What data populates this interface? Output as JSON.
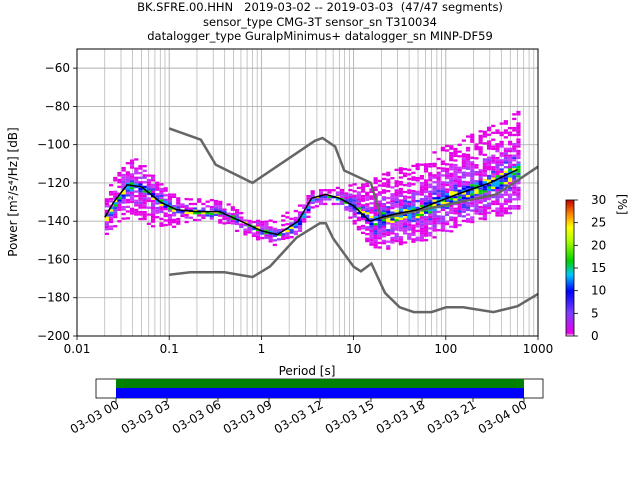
{
  "title_lines": [
    "BK.SFRE.00.HHN   2019-03-02 -- 2019-03-03  (47/47 segments)",
    "sensor_type CMG-3T sensor_sn T310034",
    "datalogger_type GuralpMinimus+ datalogger_sn MINP-DF59"
  ],
  "chart_data": {
    "type": "heatmap",
    "xlabel": "Period [s]",
    "ylabel": "Power [m²/s⁴/Hz] [dB]",
    "xscale": "log",
    "xlim": [
      0.01,
      1000
    ],
    "ylim": [
      -200,
      -50
    ],
    "x_ticks": [
      {
        "value": 0.01,
        "label": "0.01"
      },
      {
        "value": 0.1,
        "label": "0.1"
      },
      {
        "value": 1,
        "label": "1"
      },
      {
        "value": 10,
        "label": "10"
      },
      {
        "value": 100,
        "label": "100"
      },
      {
        "value": 1000,
        "label": "1000"
      }
    ],
    "y_ticks": [
      -60,
      -80,
      -100,
      -120,
      -140,
      -160,
      -180,
      -200
    ],
    "grid": true,
    "colorbar": {
      "label": "[%]",
      "ticks": [
        0,
        5,
        10,
        15,
        20,
        25,
        30
      ],
      "range": [
        0,
        30
      ]
    },
    "series": [
      {
        "name": "NHNM",
        "color": "#666666",
        "x": [
          0.1,
          0.22,
          0.32,
          0.8,
          3.8,
          4.6,
          6.3,
          7.9,
          15.4,
          20,
          354.8,
          1000
        ],
        "y": [
          -91.5,
          -97.4,
          -110.5,
          -120,
          -98,
          -96.5,
          -101,
          -113.5,
          -120,
          -138.5,
          -126,
          -111.5
        ]
      },
      {
        "name": "NLNM",
        "color": "#666666",
        "x": [
          0.1,
          0.17,
          0.4,
          0.8,
          1.24,
          2.4,
          4.3,
          5,
          6,
          10,
          12,
          15.6,
          21.9,
          31.6,
          45,
          70,
          101,
          154,
          328,
          600,
          1000
        ],
        "y": [
          -168,
          -166.7,
          -166.7,
          -169.2,
          -163.7,
          -148.6,
          -141.1,
          -141.1,
          -149,
          -163.8,
          -166.2,
          -162.1,
          -177.5,
          -185,
          -187.5,
          -187.5,
          -185,
          -185,
          -187.5,
          -184.4,
          -178
        ]
      },
      {
        "name": "mean",
        "color": "#000000",
        "x": [
          0.02,
          0.025,
          0.035,
          0.05,
          0.08,
          0.12,
          0.2,
          0.35,
          0.6,
          1,
          1.5,
          2.5,
          3.5,
          5,
          7,
          10,
          15,
          20,
          30,
          50,
          80,
          150,
          300,
          600
        ],
        "y": [
          -138,
          -130,
          -121,
          -122,
          -130,
          -134,
          -135,
          -135,
          -140,
          -145,
          -147,
          -140,
          -128,
          -126,
          -128,
          -132,
          -140,
          -138,
          -136,
          -134,
          -130,
          -125,
          -120,
          -113
        ]
      }
    ],
    "density_bands": [
      {
        "x": [
          0.02,
          0.03,
          0.04,
          0.05,
          0.07,
          0.1,
          0.15,
          0.25,
          0.4,
          0.7,
          1,
          1.5,
          2.5,
          3.5,
          5,
          7,
          10,
          15,
          20,
          30,
          50,
          80,
          150,
          300,
          600
        ],
        "low": [
          -146,
          -140,
          -135,
          -140,
          -143,
          -143,
          -140,
          -138,
          -142,
          -148,
          -153,
          -152,
          -145,
          -133,
          -130,
          -132,
          -142,
          -153,
          -155,
          -152,
          -150,
          -148,
          -142,
          -138,
          -134
        ],
        "high": [
          -122,
          -112,
          -105,
          -110,
          -118,
          -125,
          -128,
          -128,
          -130,
          -138,
          -140,
          -138,
          -130,
          -122,
          -122,
          -122,
          -120,
          -118,
          -115,
          -112,
          -108,
          -102,
          -96,
          -90,
          -82
        ]
      }
    ]
  },
  "time_bar": {
    "ticks": [
      "03-03 00",
      "03-03 03",
      "03-03 06",
      "03-03 09",
      "03-03 12",
      "03-03 15",
      "03-03 18",
      "03-03 21",
      "03-04 00"
    ],
    "colors": [
      "#008000",
      "#0000ff"
    ]
  }
}
